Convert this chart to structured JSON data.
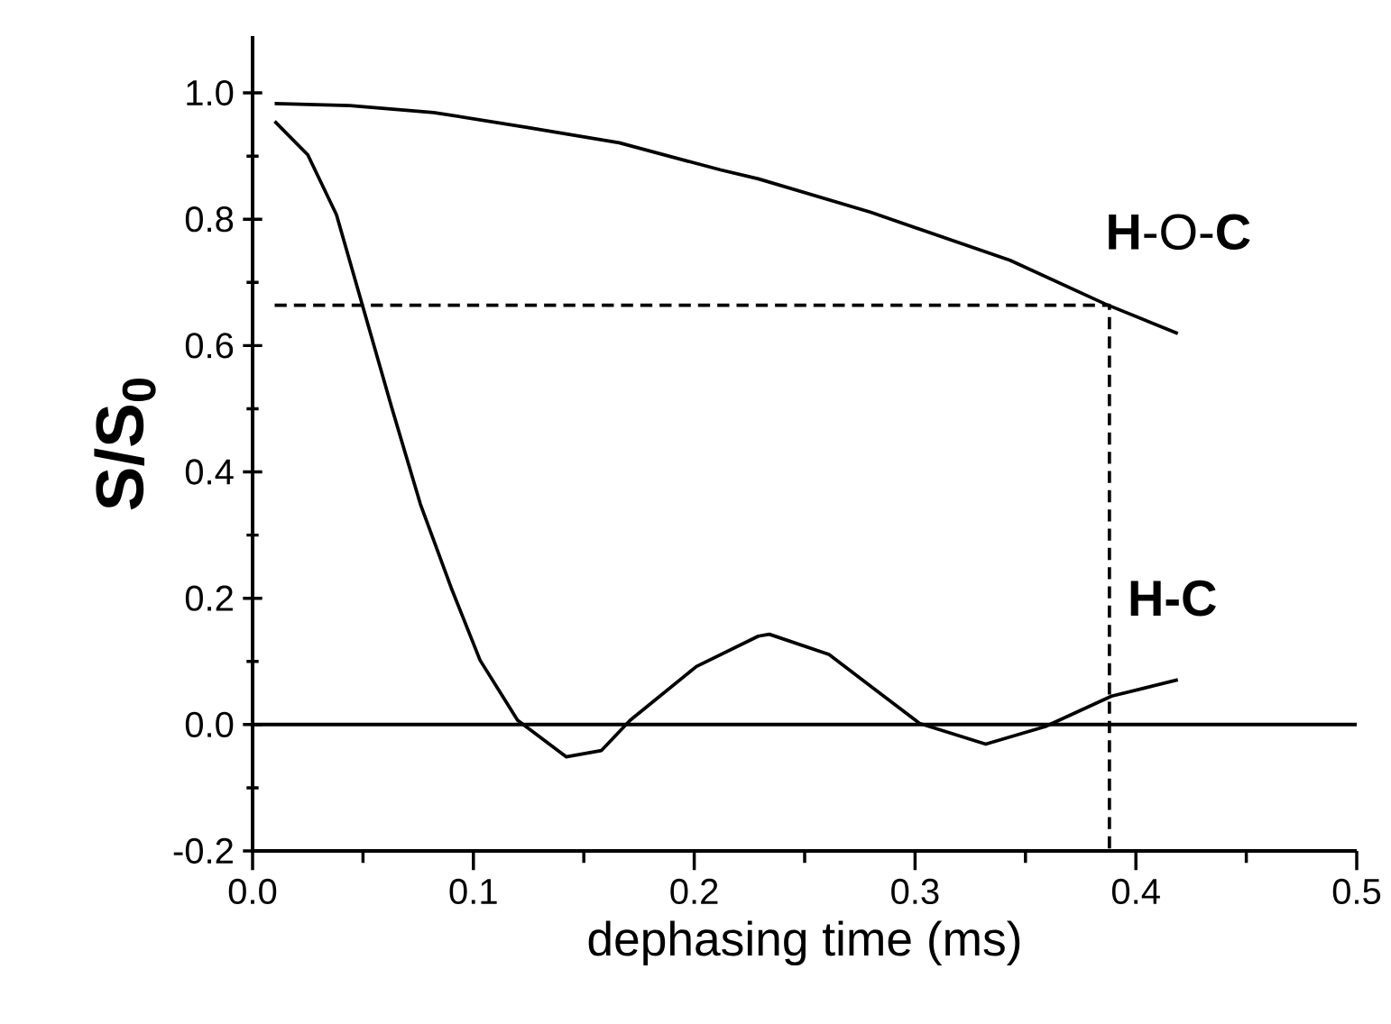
{
  "chart_data": {
    "type": "line",
    "xlabel": "dephasing time (ms)",
    "ylabel": "S/S$_{0}$",
    "xlim": [
      0,
      0.5
    ],
    "ylim": [
      -0.2,
      1.09
    ],
    "xticks": [
      {
        "value": 0,
        "label": "0.0"
      },
      0.1,
      0.2,
      0.3,
      0.4,
      0.5
    ],
    "yticks": [
      {
        "value": -0.2,
        "label": "-0.2"
      },
      {
        "value": 0,
        "label": "0.0"
      },
      0.2,
      0.4,
      0.6,
      0.8,
      {
        "value": 1,
        "label": "1.0"
      }
    ],
    "grid": false,
    "marker": "none",
    "series": [
      {
        "color": "#000000",
        "line_style": "solid",
        "x": [
          0.01,
          0.044,
          0.082,
          0.125,
          0.166,
          0.212,
          0.229,
          0.28,
          0.343,
          0.386,
          0.419
        ],
        "values": [
          0.983,
          0.98,
          0.969,
          0.945,
          0.921,
          0.878,
          0.864,
          0.811,
          0.735,
          0.666,
          0.619
        ]
      },
      {
        "color": "#000000",
        "line_style": "solid",
        "x": [
          0.01,
          0.025,
          0.038,
          0.049,
          0.063,
          0.076,
          0.09,
          0.103,
          0.12,
          0.142,
          0.158,
          0.171,
          0.201,
          0.229,
          0.234,
          0.261,
          0.302,
          0.332,
          0.359,
          0.389,
          0.419
        ],
        "values": [
          0.955,
          0.902,
          0.807,
          0.673,
          0.502,
          0.349,
          0.216,
          0.102,
          0.007,
          -0.051,
          -0.041,
          0.007,
          0.092,
          0.14,
          0.143,
          0.111,
          0.002,
          -0.031,
          -0.003,
          0.045,
          0.071
        ]
      },
      {
        "color": "#000000",
        "line_style": "dashed",
        "x": [
          0.01,
          0.388,
          0.388
        ],
        "values": [
          0.664,
          0.664,
          -0.2
        ]
      }
    ],
    "ref_lines": [
      {
        "axis": "y",
        "value": 0,
        "color": "#000000",
        "line_style": "solid"
      }
    ],
    "annotations": [
      "**H**-O-**C**",
      "**H-C**"
    ]
  }
}
